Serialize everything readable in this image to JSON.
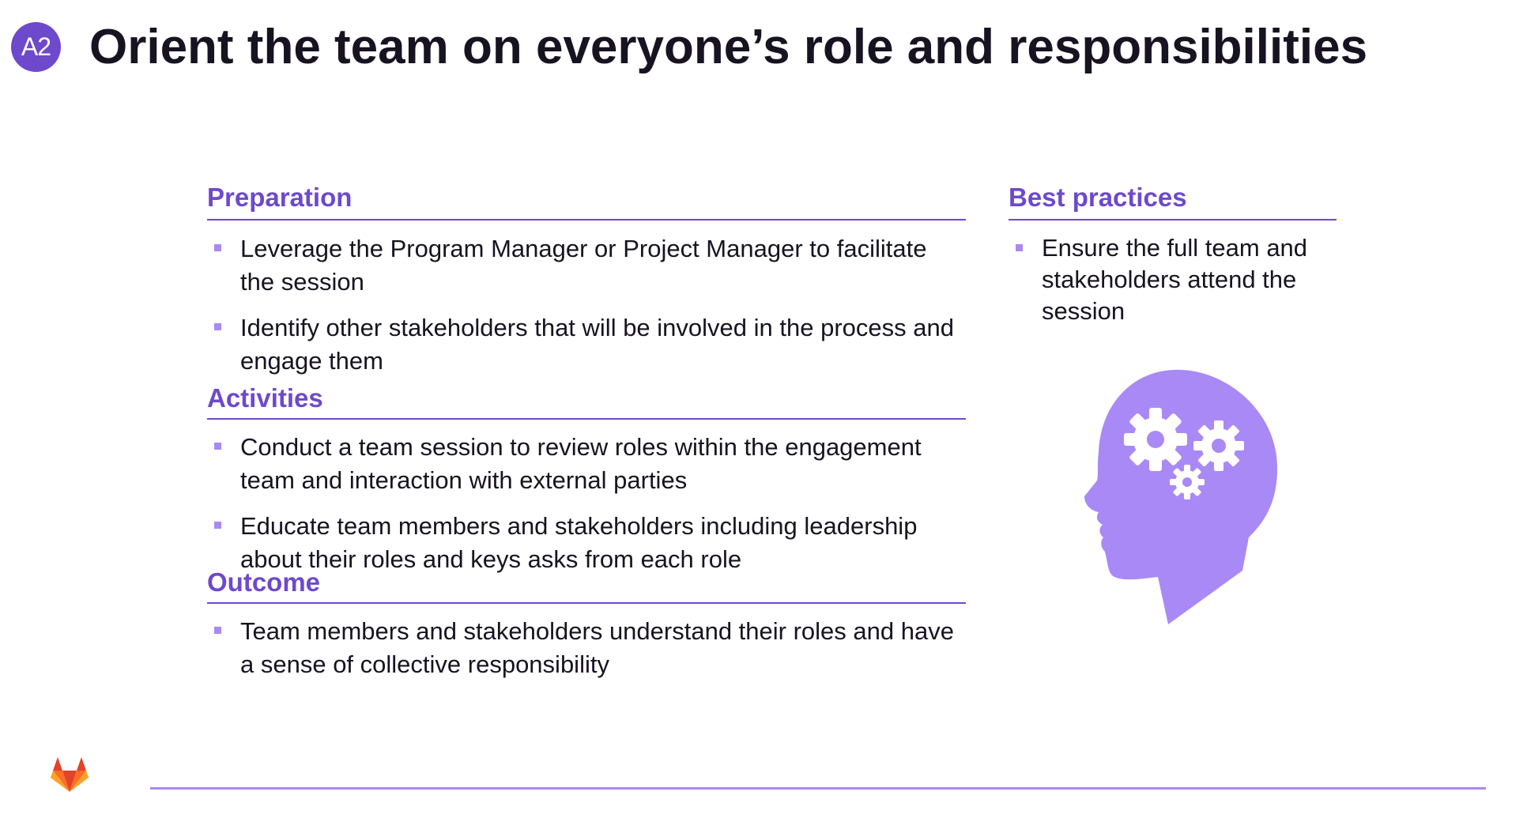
{
  "header": {
    "badge": "A2",
    "title": "Orient the team on everyone’s role and responsibilities"
  },
  "preparation": {
    "heading": "Preparation",
    "items": [
      "Leverage the Program Manager or Project Manager to facilitate the session",
      "Identify other stakeholders that will be involved in the process and engage them"
    ]
  },
  "activities": {
    "heading": "Activities",
    "items": [
      "Conduct a team session to review roles within the engagement team and interaction with external parties",
      "Educate team members and stakeholders including leadership about their roles and keys asks from each role"
    ]
  },
  "outcome": {
    "heading": "Outcome",
    "items": [
      "Team members and stakeholders understand their roles and have a sense of collective responsibility"
    ]
  },
  "best_practices": {
    "heading": "Best practices",
    "items": [
      "Ensure the full team and stakeholders attend the session"
    ]
  },
  "graphics": {
    "head_illustration": "head-with-gears-icon",
    "logo": "gitlab-tanuki-logo",
    "colors": {
      "accent": "#6e49cb",
      "light_accent": "#a989f5",
      "text": "#171321",
      "logo_orange": "#e24329",
      "logo_light_orange": "#fc6d26",
      "logo_yellow": "#fca326"
    }
  }
}
